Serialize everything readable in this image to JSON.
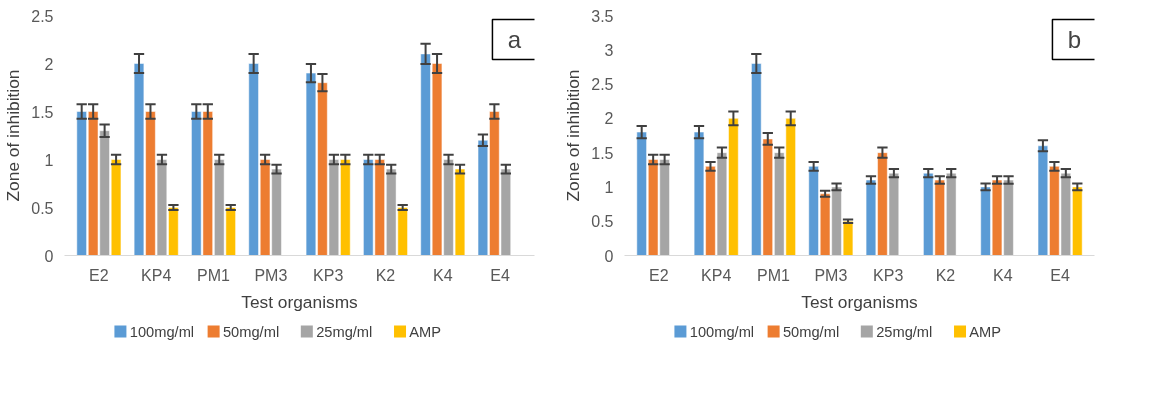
{
  "chart_data": [
    {
      "type": "bar",
      "annotations": [
        "a"
      ],
      "xlabel": "Test organisms",
      "ylabel": "Zone of inhibition",
      "categories": [
        "E2",
        "KP4",
        "PM1",
        "PM3",
        "KP3",
        "K2",
        "K4",
        "E4"
      ],
      "ylim": [
        0,
        2.5
      ],
      "yticks": [
        0,
        0.5,
        1,
        1.5,
        2,
        2.5
      ],
      "grid": false,
      "legend": "bottom",
      "series": [
        {
          "name": "100mg/ml",
          "color": "#5b9bd5",
          "values": [
            1.5,
            2.0,
            1.5,
            2.0,
            1.9,
            1.0,
            2.1,
            1.2
          ],
          "errors": [
            0.075,
            0.1,
            0.075,
            0.1,
            0.095,
            0.05,
            0.105,
            0.06
          ]
        },
        {
          "name": "50mg/ml",
          "color": "#ed7d31",
          "values": [
            1.5,
            1.5,
            1.5,
            1.0,
            1.8,
            1.0,
            2.0,
            1.5
          ],
          "errors": [
            0.075,
            0.075,
            0.075,
            0.05,
            0.09,
            0.05,
            0.1,
            0.075
          ]
        },
        {
          "name": "25mg/ml",
          "color": "#a5a5a5",
          "values": [
            1.3,
            1.0,
            1.0,
            0.9,
            1.0,
            0.9,
            1.0,
            0.9
          ],
          "errors": [
            0.065,
            0.05,
            0.05,
            0.045,
            0.05,
            0.045,
            0.05,
            0.045
          ]
        },
        {
          "name": "AMP",
          "color": "#ffc000",
          "values": [
            1.0,
            0.5,
            0.5,
            null,
            1.0,
            0.5,
            0.9,
            null
          ],
          "errors": [
            0.05,
            0.025,
            0.025,
            null,
            0.05,
            0.025,
            0.045,
            null
          ]
        }
      ]
    },
    {
      "type": "bar",
      "annotations": [
        "b"
      ],
      "xlabel": "Test organisms",
      "ylabel": "Zone of inhibition",
      "categories": [
        "E2",
        "KP4",
        "PM1",
        "PM3",
        "KP3",
        "K2",
        "K4",
        "E4"
      ],
      "ylim": [
        0,
        3.5
      ],
      "yticks": [
        0,
        0.5,
        1,
        1.5,
        2,
        2.5,
        3,
        3.5
      ],
      "grid": false,
      "legend": "bottom",
      "series": [
        {
          "name": "100mg/ml",
          "color": "#5b9bd5",
          "values": [
            1.8,
            1.8,
            2.8,
            1.3,
            1.1,
            1.2,
            1.0,
            1.6
          ],
          "errors": [
            0.09,
            0.09,
            0.14,
            0.065,
            0.055,
            0.06,
            0.05,
            0.08
          ]
        },
        {
          "name": "50mg/ml",
          "color": "#ed7d31",
          "values": [
            1.4,
            1.3,
            1.7,
            0.9,
            1.5,
            1.1,
            1.1,
            1.3
          ],
          "errors": [
            0.07,
            0.065,
            0.085,
            0.045,
            0.075,
            0.055,
            0.055,
            0.065
          ]
        },
        {
          "name": "25mg/ml",
          "color": "#a5a5a5",
          "values": [
            1.4,
            1.5,
            1.5,
            1.0,
            1.2,
            1.2,
            1.1,
            1.2
          ],
          "errors": [
            0.07,
            0.075,
            0.075,
            0.05,
            0.06,
            0.06,
            0.055,
            0.06
          ]
        },
        {
          "name": "AMP",
          "color": "#ffc000",
          "values": [
            null,
            2.0,
            2.0,
            0.5,
            null,
            null,
            null,
            1.0
          ],
          "errors": [
            null,
            0.1,
            0.1,
            0.025,
            null,
            null,
            null,
            0.05
          ]
        }
      ]
    }
  ]
}
